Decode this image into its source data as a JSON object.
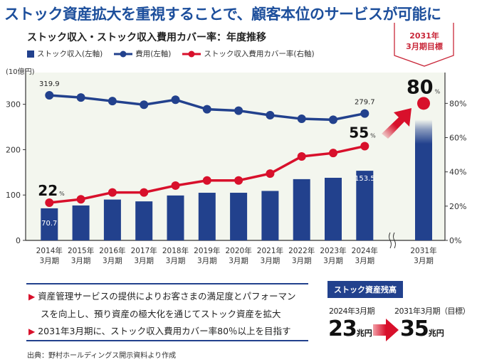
{
  "headline": "ストック資産拡大を重視することで、顧客本位のサービスが可能に",
  "chart_data": {
    "type": "bar+line",
    "title": "ストック収入・ストック収入費用カバー率：年度推移",
    "y_left_unit": "(10億円)",
    "y_left_ticks": [
      "0",
      "100",
      "200",
      "300"
    ],
    "y_left_range": [
      0,
      370
    ],
    "y_right_ticks": [
      "0%",
      "20%",
      "40%",
      "60%",
      "80%"
    ],
    "y_right_range": [
      0,
      98
    ],
    "categories": [
      [
        "2014年",
        "3月期"
      ],
      [
        "2015年",
        "3月期"
      ],
      [
        "2016年",
        "3月期"
      ],
      [
        "2017年",
        "3月期"
      ],
      [
        "2018年",
        "3月期"
      ],
      [
        "2019年",
        "3月期"
      ],
      [
        "2020年",
        "3月期"
      ],
      [
        "2021年",
        "3月期"
      ],
      [
        "2022年",
        "3月期"
      ],
      [
        "2023年",
        "3月期"
      ],
      [
        "2024年",
        "3月期"
      ],
      [
        "2031年",
        "3月期"
      ]
    ],
    "axis_break_before_last": true,
    "series": [
      {
        "name": "ストック収入(左軸)",
        "type": "bar",
        "axis": "left",
        "color": "#22418d",
        "values": [
          70.7,
          77,
          90,
          86,
          99,
          105,
          105,
          109,
          135,
          138,
          153.5,
          266
        ],
        "labels": [
          "70.7",
          null,
          null,
          null,
          null,
          null,
          null,
          null,
          null,
          null,
          "153.5",
          null
        ]
      },
      {
        "name": "費用(左軸)",
        "type": "line",
        "axis": "left",
        "color": "#22418d",
        "values": [
          319.9,
          315,
          307,
          299,
          310,
          289,
          286,
          276,
          268,
          266,
          279.7,
          null
        ],
        "labels": [
          "319.9",
          null,
          null,
          null,
          null,
          null,
          null,
          null,
          null,
          null,
          "279.7",
          null
        ]
      },
      {
        "name": "ストック収入費用カバー率(右軸)",
        "type": "line",
        "axis": "right",
        "color": "#d8102b",
        "values": [
          22,
          24,
          28,
          28,
          32,
          35,
          35,
          39,
          49,
          51,
          55,
          80
        ],
        "labels": [
          "22",
          null,
          null,
          null,
          null,
          null,
          null,
          null,
          null,
          null,
          "55",
          "80"
        ],
        "label_unit": "%"
      }
    ],
    "target_label": [
      "2031年",
      "3月期目標"
    ],
    "plot_background": "#f3f6ee"
  },
  "notes": [
    "資産管理サービスの提供によりお客さまの満足度とパフォーマン",
    "スを向上し、預り資産の極大化を通じてストック資産を拡大",
    "2031年3月期に、ストック収入費用カバー率80％以上を目指す"
  ],
  "stock_assets": {
    "title": "ストック資産残高",
    "from_period": "2024年3月期",
    "from_value": "23",
    "to_period": "2031年3月期（目標）",
    "to_value": "35",
    "unit": "兆円"
  },
  "source": "出典：野村ホールディングス開示資料より作成",
  "colors": {
    "accent_blue": "#22418d",
    "accent_red": "#d8102b",
    "title_blue": "#1d4f9c"
  }
}
